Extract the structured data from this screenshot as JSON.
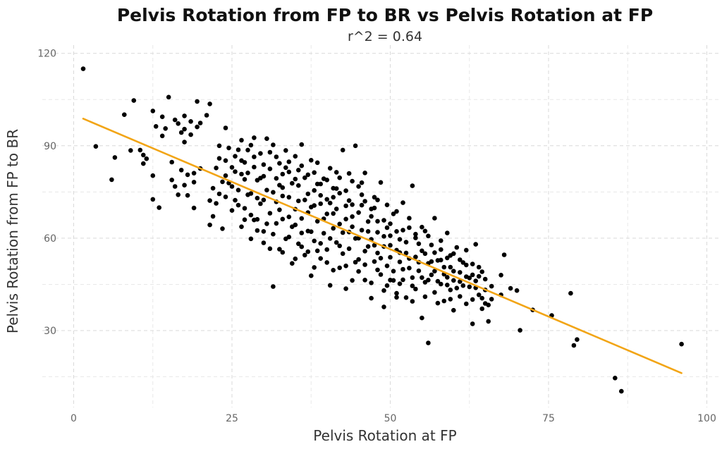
{
  "chart_data": {
    "type": "scatter",
    "title": "Pelvis Rotation from FP to BR vs Pelvis Rotation at FP",
    "subtitle": "r^2 = 0.64",
    "xlabel": "Pelvis Rotation at FP",
    "ylabel": "Pelvis Rotation from FP to BR",
    "xlim": [
      0,
      100
    ],
    "ylim": [
      10,
      120
    ],
    "xticks": [
      0,
      25,
      50,
      75,
      100
    ],
    "yticks": [
      30,
      60,
      90,
      120
    ],
    "xtick_labels": [
      "0",
      "25",
      "50",
      "75",
      "100"
    ],
    "ytick_labels": [
      "30",
      "60",
      "90",
      "120"
    ],
    "grid": true,
    "legend": "none",
    "point_color": "#000000",
    "line_color": "#f2a516",
    "trend_line": {
      "x": [
        1.5,
        96.0
      ],
      "y": [
        98.8,
        16.2
      ]
    },
    "points": [
      [
        1.5,
        115.0
      ],
      [
        3.5,
        89.8
      ],
      [
        6.0,
        79.0
      ],
      [
        6.5,
        86.2
      ],
      [
        8.0,
        100.1
      ],
      [
        9.0,
        88.5
      ],
      [
        9.5,
        104.7
      ],
      [
        10.5,
        88.6
      ],
      [
        11.0,
        84.2
      ],
      [
        11.0,
        87.0
      ],
      [
        11.5,
        85.8
      ],
      [
        12.5,
        72.6
      ],
      [
        12.5,
        80.3
      ],
      [
        12.5,
        101.3
      ],
      [
        13.0,
        96.3
      ],
      [
        13.5,
        69.9
      ],
      [
        14.0,
        93.2
      ],
      [
        14.0,
        99.4
      ],
      [
        14.5,
        95.6
      ],
      [
        15.0,
        105.8
      ],
      [
        15.5,
        78.9
      ],
      [
        15.5,
        84.7
      ],
      [
        16.0,
        76.8
      ],
      [
        16.0,
        98.4
      ],
      [
        16.5,
        74.1
      ],
      [
        16.5,
        97.2
      ],
      [
        17.0,
        94.3
      ],
      [
        17.0,
        82.1
      ],
      [
        17.5,
        77.2
      ],
      [
        17.5,
        91.2
      ],
      [
        17.5,
        95.4
      ],
      [
        17.5,
        99.7
      ],
      [
        18.0,
        73.9
      ],
      [
        18.0,
        80.6
      ],
      [
        18.5,
        93.6
      ],
      [
        18.5,
        97.9
      ],
      [
        19.0,
        78.2
      ],
      [
        19.0,
        81.1
      ],
      [
        19.0,
        69.8
      ],
      [
        19.5,
        96.1
      ],
      [
        19.5,
        104.4
      ],
      [
        20.0,
        97.4
      ],
      [
        20.0,
        82.6
      ],
      [
        21.0,
        99.9
      ],
      [
        21.5,
        64.3
      ],
      [
        21.5,
        103.6
      ],
      [
        21.5,
        72.2
      ],
      [
        22.0,
        67.1
      ],
      [
        22.5,
        71.3
      ],
      [
        23.0,
        74.4
      ],
      [
        23.0,
        85.9
      ],
      [
        23.0,
        90.0
      ],
      [
        23.5,
        63.1
      ],
      [
        24.0,
        80.3
      ],
      [
        24.0,
        95.8
      ],
      [
        24.0,
        73.4
      ],
      [
        24.5,
        89.3
      ],
      [
        25.0,
        83.0
      ],
      [
        25.0,
        76.8
      ],
      [
        25.5,
        72.3
      ],
      [
        26.0,
        88.7
      ],
      [
        26.5,
        63.7
      ],
      [
        26.5,
        85.2
      ],
      [
        27.0,
        79.1
      ],
      [
        27.0,
        69.7
      ],
      [
        27.5,
        81.2
      ],
      [
        28.0,
        74.5
      ],
      [
        28.0,
        90.2
      ],
      [
        28.5,
        65.9
      ],
      [
        28.5,
        86.4
      ],
      [
        29.0,
        62.5
      ],
      [
        29.0,
        78.8
      ],
      [
        29.5,
        71.2
      ],
      [
        30.0,
        58.5
      ],
      [
        30.0,
        83.9
      ],
      [
        30.5,
        92.3
      ],
      [
        30.5,
        75.6
      ],
      [
        31.0,
        68.1
      ],
      [
        31.0,
        87.9
      ],
      [
        31.5,
        44.3
      ],
      [
        31.5,
        61.3
      ],
      [
        32.0,
        79.4
      ],
      [
        32.0,
        71.8
      ],
      [
        32.5,
        56.4
      ],
      [
        32.5,
        84.3
      ],
      [
        33.0,
        66.2
      ],
      [
        33.0,
        76.4
      ],
      [
        33.5,
        88.5
      ],
      [
        33.5,
        59.8
      ],
      [
        34.0,
        73.3
      ],
      [
        34.0,
        81.5
      ],
      [
        34.5,
        63.7
      ],
      [
        34.5,
        51.8
      ],
      [
        35.0,
        69.4
      ],
      [
        35.0,
        86.6
      ],
      [
        35.5,
        77.1
      ],
      [
        35.5,
        58.2
      ],
      [
        36.0,
        90.4
      ],
      [
        36.0,
        66.4
      ],
      [
        36.5,
        72.4
      ],
      [
        36.5,
        54.5
      ],
      [
        37.0,
        80.6
      ],
      [
        37.0,
        62.3
      ],
      [
        37.5,
        47.8
      ],
      [
        37.5,
        70.1
      ],
      [
        38.0,
        75.5
      ],
      [
        38.0,
        59.1
      ],
      [
        38.5,
        84.5
      ],
      [
        38.5,
        65.5
      ],
      [
        39.0,
        53.4
      ],
      [
        39.0,
        73.9
      ],
      [
        39.5,
        79.3
      ],
      [
        39.5,
        61.6
      ],
      [
        40.0,
        67.9
      ],
      [
        40.0,
        56.3
      ],
      [
        40.5,
        44.7
      ],
      [
        40.5,
        71.4
      ],
      [
        41.0,
        76.2
      ],
      [
        41.0,
        63.2
      ],
      [
        41.5,
        58.6
      ],
      [
        41.5,
        69.5
      ],
      [
        42.0,
        50.4
      ],
      [
        42.0,
        74.6
      ],
      [
        42.5,
        88.6
      ],
      [
        42.5,
        61.8
      ],
      [
        43.0,
        66.2
      ],
      [
        43.0,
        43.6
      ],
      [
        43.5,
        72.2
      ],
      [
        43.5,
        56.6
      ],
      [
        44.0,
        63.7
      ],
      [
        44.0,
        78.5
      ],
      [
        44.5,
        59.9
      ],
      [
        44.5,
        90.0
      ],
      [
        45.0,
        68.3
      ],
      [
        45.0,
        53.1
      ],
      [
        45.5,
        62.6
      ],
      [
        45.5,
        74.1
      ],
      [
        46.0,
        46.4
      ],
      [
        46.0,
        81.2
      ],
      [
        46.5,
        57.3
      ],
      [
        46.5,
        65.4
      ],
      [
        47.0,
        59.6
      ],
      [
        47.0,
        40.5
      ],
      [
        47.5,
        52.4
      ],
      [
        47.5,
        69.8
      ],
      [
        48.0,
        61.9
      ],
      [
        48.0,
        55.2
      ],
      [
        48.5,
        48.2
      ],
      [
        48.5,
        78.1
      ],
      [
        49.0,
        57.3
      ],
      [
        49.0,
        37.7
      ],
      [
        49.5,
        63.4
      ],
      [
        49.5,
        44.6
      ],
      [
        50.0,
        53.8
      ],
      [
        50.0,
        60.8
      ],
      [
        50.5,
        49.3
      ],
      [
        50.5,
        67.9
      ],
      [
        51.0,
        56.1
      ],
      [
        51.0,
        42.1
      ],
      [
        51.5,
        52.3
      ],
      [
        51.5,
        59.6
      ],
      [
        52.0,
        46.5
      ],
      [
        52.0,
        71.5
      ],
      [
        52.5,
        55.2
      ],
      [
        52.5,
        40.7
      ],
      [
        53.0,
        50.3
      ],
      [
        53.0,
        63.4
      ],
      [
        53.5,
        47.2
      ],
      [
        53.5,
        77.0
      ],
      [
        54.0,
        53.9
      ],
      [
        54.0,
        43.5
      ],
      [
        54.5,
        58.2
      ],
      [
        54.5,
        49.4
      ],
      [
        55.0,
        34.1
      ],
      [
        55.0,
        55.9
      ],
      [
        55.5,
        45.7
      ],
      [
        55.5,
        62.3
      ],
      [
        56.0,
        51.8
      ],
      [
        56.0,
        26.0
      ],
      [
        56.5,
        48.1
      ],
      [
        56.5,
        57.8
      ],
      [
        57.0,
        42.4
      ],
      [
        57.0,
        66.5
      ],
      [
        57.5,
        52.8
      ],
      [
        58.0,
        45.1
      ],
      [
        58.0,
        56.3
      ],
      [
        58.5,
        39.6
      ],
      [
        58.5,
        50.6
      ],
      [
        59.0,
        61.7
      ],
      [
        59.0,
        47.3
      ],
      [
        59.5,
        43.2
      ],
      [
        59.5,
        54.4
      ],
      [
        60.0,
        36.6
      ],
      [
        60.0,
        49.3
      ],
      [
        60.5,
        57.0
      ],
      [
        61.0,
        45.9
      ],
      [
        61.0,
        41.1
      ],
      [
        61.5,
        52.1
      ],
      [
        62.0,
        47.5
      ],
      [
        62.0,
        38.7
      ],
      [
        62.5,
        44.2
      ],
      [
        63.0,
        51.6
      ],
      [
        63.0,
        32.2
      ],
      [
        63.5,
        46.1
      ],
      [
        63.5,
        58.0
      ],
      [
        64.0,
        41.6
      ],
      [
        64.5,
        49.1
      ],
      [
        64.5,
        37.1
      ],
      [
        65.0,
        43.2
      ],
      [
        65.5,
        38.3
      ],
      [
        65.5,
        33.0
      ],
      [
        66.0,
        44.4
      ],
      [
        67.5,
        48.0
      ],
      [
        67.5,
        41.6
      ],
      [
        68.0,
        54.6
      ],
      [
        69.0,
        43.7
      ],
      [
        70.0,
        43.0
      ],
      [
        70.5,
        30.1
      ],
      [
        72.5,
        36.7
      ],
      [
        75.5,
        34.9
      ],
      [
        78.5,
        42.1
      ],
      [
        79.0,
        25.2
      ],
      [
        79.5,
        27.1
      ],
      [
        85.5,
        14.6
      ],
      [
        86.5,
        10.3
      ],
      [
        96.0,
        25.6
      ],
      [
        26.0,
        70.7
      ],
      [
        27.0,
        84.6
      ],
      [
        28.0,
        67.5
      ],
      [
        29.0,
        73.0
      ],
      [
        30.0,
        80.1
      ],
      [
        30.5,
        64.7
      ],
      [
        31.5,
        74.9
      ],
      [
        32.5,
        69.2
      ],
      [
        33.0,
        80.8
      ],
      [
        34.0,
        60.4
      ],
      [
        34.5,
        77.8
      ],
      [
        35.0,
        64.3
      ],
      [
        35.5,
        72.1
      ],
      [
        36.0,
        57.2
      ],
      [
        36.5,
        79.6
      ],
      [
        37.0,
        68.3
      ],
      [
        37.5,
        62.1
      ],
      [
        38.0,
        70.6
      ],
      [
        38.5,
        55.9
      ],
      [
        39.0,
        77.6
      ],
      [
        39.5,
        66.3
      ],
      [
        40.0,
        72.6
      ],
      [
        40.5,
        59.9
      ],
      [
        41.0,
        68.0
      ],
      [
        41.5,
        81.4
      ],
      [
        42.0,
        64.6
      ],
      [
        42.5,
        55.0
      ],
      [
        43.0,
        70.5
      ],
      [
        43.5,
        62.0
      ],
      [
        44.0,
        67.0
      ],
      [
        44.5,
        52.2
      ],
      [
        45.0,
        60.0
      ],
      [
        45.5,
        70.7
      ],
      [
        46.0,
        55.8
      ],
      [
        46.5,
        62.2
      ],
      [
        47.0,
        67.1
      ],
      [
        47.5,
        57.7
      ],
      [
        48.0,
        65.5
      ],
      [
        48.5,
        53.5
      ],
      [
        49.0,
        60.6
      ],
      [
        49.5,
        51.0
      ],
      [
        50.0,
        57.7
      ],
      [
        50.5,
        46.3
      ],
      [
        51.0,
        62.2
      ],
      [
        51.5,
        55.3
      ],
      [
        52.0,
        49.9
      ],
      [
        52.5,
        58.7
      ],
      [
        53.0,
        53.4
      ],
      [
        53.5,
        44.5
      ],
      [
        54.0,
        60.1
      ],
      [
        54.5,
        52.2
      ],
      [
        55.0,
        47.2
      ],
      [
        55.5,
        55.0
      ],
      [
        56.0,
        46.4
      ],
      [
        56.5,
        52.4
      ],
      [
        57.0,
        49.3
      ],
      [
        57.5,
        46.0
      ],
      [
        58.0,
        52.9
      ],
      [
        58.5,
        48.3
      ],
      [
        59.0,
        44.8
      ],
      [
        59.5,
        50.6
      ],
      [
        60.0,
        46.3
      ],
      [
        60.5,
        43.8
      ],
      [
        61.0,
        48.9
      ],
      [
        61.5,
        44.6
      ],
      [
        62.0,
        51.3
      ],
      [
        62.5,
        47.1
      ],
      [
        63.0,
        40.1
      ],
      [
        63.5,
        43.9
      ],
      [
        64.0,
        47.6
      ],
      [
        64.5,
        40.5
      ],
      [
        65.0,
        38.8
      ],
      [
        24.5,
        77.9
      ],
      [
        25.5,
        86.6
      ],
      [
        26.5,
        80.8
      ],
      [
        27.5,
        74.1
      ],
      [
        28.5,
        83.1
      ],
      [
        29.5,
        87.5
      ],
      [
        30.0,
        72.4
      ],
      [
        31.0,
        82.5
      ],
      [
        32.0,
        86.4
      ],
      [
        33.0,
        73.7
      ],
      [
        34.0,
        84.8
      ],
      [
        35.0,
        79.2
      ],
      [
        36.0,
        83.5
      ],
      [
        37.0,
        74.4
      ],
      [
        38.0,
        81.3
      ],
      [
        39.0,
        71.2
      ],
      [
        40.0,
        78.9
      ],
      [
        41.0,
        73.3
      ],
      [
        42.0,
        79.6
      ],
      [
        43.0,
        75.4
      ],
      [
        44.0,
        70.9
      ],
      [
        45.0,
        76.8
      ],
      [
        46.0,
        72.0
      ],
      [
        47.0,
        69.5
      ],
      [
        48.0,
        72.4
      ],
      [
        49.0,
        65.8
      ],
      [
        50.0,
        64.7
      ],
      [
        51.0,
        68.7
      ],
      [
        52.0,
        62.6
      ],
      [
        53.0,
        66.5
      ],
      [
        54.0,
        61.3
      ],
      [
        55.0,
        63.6
      ],
      [
        28.0,
        59.8
      ],
      [
        29.0,
        66.1
      ],
      [
        30.0,
        62.2
      ],
      [
        31.0,
        56.6
      ],
      [
        32.0,
        64.8
      ],
      [
        33.0,
        55.4
      ],
      [
        34.0,
        66.9
      ],
      [
        35.0,
        53.3
      ],
      [
        36.0,
        61.7
      ],
      [
        37.0,
        55.6
      ],
      [
        38.0,
        50.5
      ],
      [
        39.0,
        58.3
      ],
      [
        40.0,
        52.1
      ],
      [
        41.0,
        49.6
      ],
      [
        42.0,
        57.5
      ],
      [
        43.0,
        51.0
      ],
      [
        44.0,
        46.3
      ],
      [
        45.0,
        49.2
      ],
      [
        46.0,
        51.4
      ],
      [
        47.0,
        45.5
      ],
      [
        48.0,
        49.7
      ],
      [
        49.0,
        43.0
      ],
      [
        50.0,
        46.4
      ],
      [
        51.0,
        40.8
      ],
      [
        26.5,
        91.8
      ],
      [
        27.5,
        88.6
      ],
      [
        28.5,
        92.6
      ],
      [
        29.5,
        79.5
      ],
      [
        31.5,
        90.3
      ],
      [
        32.5,
        77.2
      ],
      [
        33.5,
        82.9
      ],
      [
        35.5,
        82.1
      ],
      [
        37.5,
        85.3
      ],
      [
        38.5,
        77.6
      ],
      [
        40.5,
        82.7
      ],
      [
        41.5,
        76.1
      ],
      [
        43.5,
        81.0
      ],
      [
        45.5,
        78.0
      ],
      [
        47.5,
        73.3
      ],
      [
        49.5,
        70.8
      ],
      [
        24.0,
        85.2
      ],
      [
        25.0,
        69.0
      ],
      [
        26.0,
        75.6
      ],
      [
        27.0,
        66.0
      ],
      [
        25.5,
        81.6
      ],
      [
        23.5,
        78.3
      ],
      [
        22.5,
        82.8
      ],
      [
        22.0,
        76.2
      ],
      [
        56.0,
        60.7
      ],
      [
        57.0,
        55.3
      ],
      [
        58.0,
        59.2
      ],
      [
        59.0,
        53.6
      ],
      [
        60.0,
        55.0
      ],
      [
        61.0,
        53.0
      ],
      [
        62.0,
        56.1
      ],
      [
        63.0,
        48.1
      ],
      [
        64.0,
        50.6
      ],
      [
        65.0,
        46.7
      ],
      [
        66.0,
        40.2
      ],
      [
        55.5,
        41.0
      ],
      [
        57.5,
        38.9
      ],
      [
        59.5,
        40.2
      ],
      [
        53.5,
        39.5
      ],
      [
        51.5,
        45.2
      ]
    ]
  }
}
